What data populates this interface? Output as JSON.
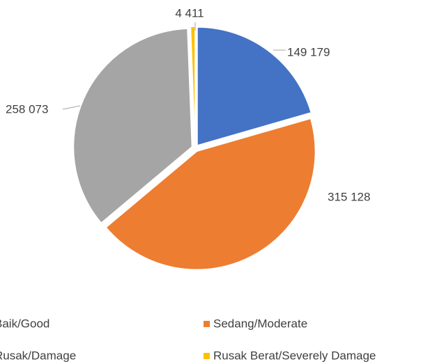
{
  "chart_data": {
    "type": "pie",
    "categories": [
      "Baik/Good",
      "Sedang/Moderate",
      "Rusak/Damage",
      "Rusak Berat/Severely Damage"
    ],
    "values": [
      149179,
      315128,
      258073,
      4411
    ],
    "value_labels": [
      "149 179",
      "315 128",
      "258 073",
      "4 411"
    ],
    "colors": [
      "#4472c4",
      "#ed7d31",
      "#a5a5a5",
      "#ffc000"
    ],
    "legend": "bottom"
  }
}
